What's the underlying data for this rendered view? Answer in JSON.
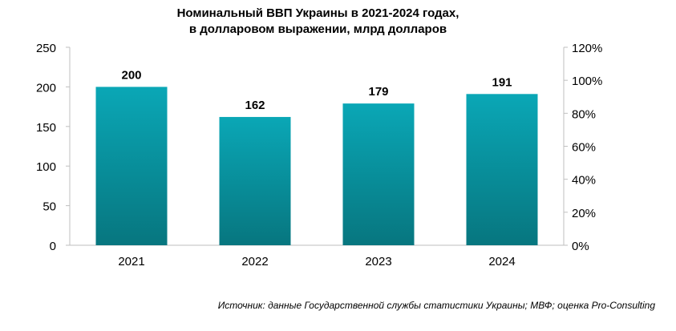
{
  "title_line1": "Номинальный ВВП Украины в 2021-2024 годах,",
  "title_line2": "в долларовом выражении, млрд долларов",
  "source": "Источник: данные Государственной службы статистики Украины; МВФ; оценка Pro-Consulting",
  "chart_data": {
    "type": "bar",
    "categories": [
      "2021",
      "2022",
      "2023",
      "2024"
    ],
    "values": [
      200,
      162,
      179,
      191
    ],
    "data_labels": [
      "200",
      "162",
      "179",
      "191"
    ],
    "ylim": [
      0,
      250
    ],
    "yticks": [
      0,
      50,
      100,
      150,
      200,
      250
    ],
    "y2lim": [
      0,
      120
    ],
    "y2ticks": [
      "0%",
      "20%",
      "40%",
      "60%",
      "80%",
      "100%",
      "120%"
    ],
    "grid": false,
    "legend": "none",
    "bar_color_top": "#0aa7b6",
    "bar_color_bottom": "#07767f"
  }
}
